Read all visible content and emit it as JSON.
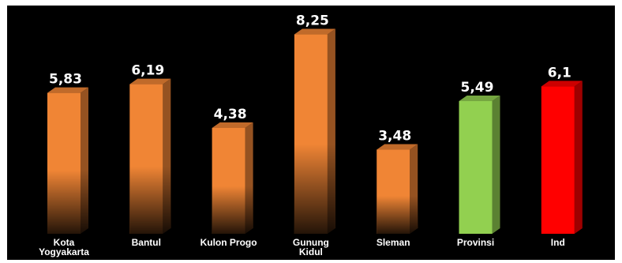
{
  "chart_data": {
    "type": "bar",
    "categories": [
      [
        "Kota",
        "Yogyakarta"
      ],
      [
        "Bantul"
      ],
      [
        "Kulon Progo"
      ],
      [
        "Gunung",
        "Kidul"
      ],
      [
        "Sleman"
      ],
      [
        "Provinsi"
      ],
      [
        "Ind"
      ]
    ],
    "values": [
      5.83,
      6.19,
      4.38,
      8.25,
      3.48,
      5.49,
      6.1
    ],
    "value_labels": [
      "5,83",
      "6,19",
      "4,38",
      "8,25",
      "3,48",
      "5,49",
      "6,1"
    ],
    "bar_colors": [
      "#f08535",
      "#f08535",
      "#f08535",
      "#f08535",
      "#f08535",
      "#92d050",
      "#ff0000"
    ],
    "ylim": [
      0,
      9
    ],
    "title": "",
    "xlabel": "",
    "ylabel": "",
    "grid": false,
    "legend": "none",
    "background": "#000000"
  }
}
